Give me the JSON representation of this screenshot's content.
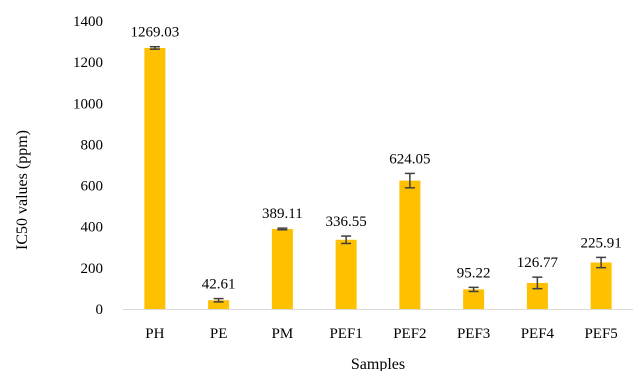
{
  "chart_data": {
    "type": "bar",
    "title": "",
    "xlabel": "Samples",
    "ylabel": "IC50 values (ppm)",
    "categories": [
      "PH",
      "PE",
      "PM",
      "PEF1",
      "PEF2",
      "PEF3",
      "PEF4",
      "PEF5"
    ],
    "values": [
      1269.03,
      42.61,
      389.11,
      336.55,
      624.05,
      95.22,
      126.77,
      225.91
    ],
    "value_labels": [
      "1269.03",
      "42.61",
      "389.11",
      "336.55",
      "624.05",
      "95.22",
      "126.77",
      "225.91"
    ],
    "error": [
      6,
      8,
      4,
      18,
      35,
      10,
      28,
      25
    ],
    "ylim": [
      0,
      1400
    ],
    "yticks": [
      0,
      200,
      400,
      600,
      800,
      1000,
      1200,
      1400
    ],
    "ytick_labels": [
      "0",
      "200",
      "400",
      "600",
      "800",
      "1000",
      "1200",
      "1400"
    ],
    "grid": false,
    "legend": "none",
    "colors": {
      "bar": "#FFC000",
      "error_bar": "#404040",
      "axis": "#d9d9d9"
    }
  }
}
